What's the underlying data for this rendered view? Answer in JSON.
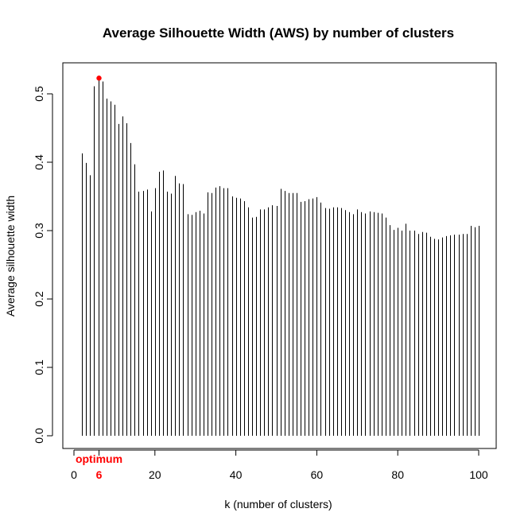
{
  "chart_data": {
    "type": "bar",
    "style": "vertical-lines",
    "title": "Average Silhouette Width (AWS) by number of clusters",
    "xlabel": "k (number of clusters)",
    "ylabel": "Average silhouette width",
    "xlim": [
      0,
      100
    ],
    "ylim": [
      0,
      0.52
    ],
    "xticks": [
      0,
      20,
      40,
      60,
      80,
      100
    ],
    "yticks": [
      0.0,
      0.1,
      0.2,
      0.3,
      0.4,
      0.5
    ],
    "x": [
      1,
      2,
      3,
      4,
      5,
      6,
      7,
      8,
      9,
      10,
      11,
      12,
      13,
      14,
      15,
      16,
      17,
      18,
      19,
      20,
      21,
      22,
      23,
      24,
      25,
      26,
      27,
      28,
      29,
      30,
      31,
      32,
      33,
      34,
      35,
      36,
      37,
      38,
      39,
      40,
      41,
      42,
      43,
      44,
      45,
      46,
      47,
      48,
      49,
      50,
      51,
      52,
      53,
      54,
      55,
      56,
      57,
      58,
      59,
      60,
      61,
      62,
      63,
      64,
      65,
      66,
      67,
      68,
      69,
      70,
      71,
      72,
      73,
      74,
      75,
      76,
      77,
      78,
      79,
      80,
      81,
      82,
      83,
      84,
      85,
      86,
      87,
      88,
      89,
      90,
      91,
      92,
      93,
      94,
      95,
      96,
      97,
      98,
      99,
      100
    ],
    "values": [
      0.0,
      0.413,
      0.399,
      0.381,
      0.511,
      0.523,
      0.518,
      0.493,
      0.489,
      0.484,
      0.456,
      0.467,
      0.457,
      0.428,
      0.397,
      0.357,
      0.358,
      0.36,
      0.328,
      0.362,
      0.386,
      0.388,
      0.357,
      0.354,
      0.38,
      0.369,
      0.368,
      0.324,
      0.323,
      0.327,
      0.329,
      0.325,
      0.356,
      0.355,
      0.363,
      0.365,
      0.362,
      0.362,
      0.35,
      0.348,
      0.347,
      0.343,
      0.334,
      0.319,
      0.32,
      0.331,
      0.331,
      0.334,
      0.337,
      0.336,
      0.361,
      0.358,
      0.355,
      0.355,
      0.355,
      0.342,
      0.343,
      0.346,
      0.347,
      0.349,
      0.341,
      0.333,
      0.332,
      0.334,
      0.334,
      0.333,
      0.33,
      0.327,
      0.324,
      0.331,
      0.327,
      0.325,
      0.328,
      0.327,
      0.326,
      0.325,
      0.319,
      0.308,
      0.301,
      0.304,
      0.3,
      0.31,
      0.3,
      0.3,
      0.295,
      0.298,
      0.297,
      0.291,
      0.288,
      0.287,
      0.29,
      0.292,
      0.293,
      0.294,
      0.294,
      0.295,
      0.295,
      0.307,
      0.305,
      0.307
    ],
    "optimum": {
      "k": 6,
      "value": 0.523,
      "label": "optimum",
      "k_label": "6",
      "color": "#ff0000"
    }
  }
}
